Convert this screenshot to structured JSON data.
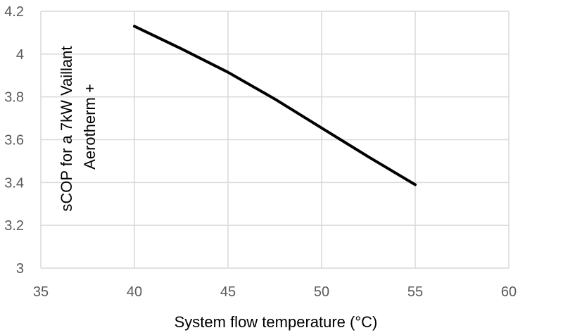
{
  "chart_data": {
    "type": "line",
    "title": "",
    "xlabel": "System flow temperature (°C)",
    "ylabel_lines": [
      "sCOP for a 7kW Vaillant",
      "Aerotherm +"
    ],
    "xlim": [
      35,
      60
    ],
    "ylim": [
      3,
      4.2
    ],
    "x_ticks": [
      35,
      40,
      45,
      50,
      55,
      60
    ],
    "y_ticks": [
      3,
      3.2,
      3.4,
      3.6,
      3.8,
      4,
      4.2
    ],
    "y_tick_labels": [
      "3",
      "3.2",
      "3.4",
      "3.6",
      "3.8",
      "4",
      "4.2"
    ],
    "grid": true,
    "series": [
      {
        "color": "#000000",
        "x": [
          40,
          42.5,
          45,
          47.5,
          50,
          52.5,
          55
        ],
        "y": [
          4.13,
          4.025,
          3.915,
          3.79,
          3.655,
          3.52,
          3.39
        ]
      }
    ]
  }
}
